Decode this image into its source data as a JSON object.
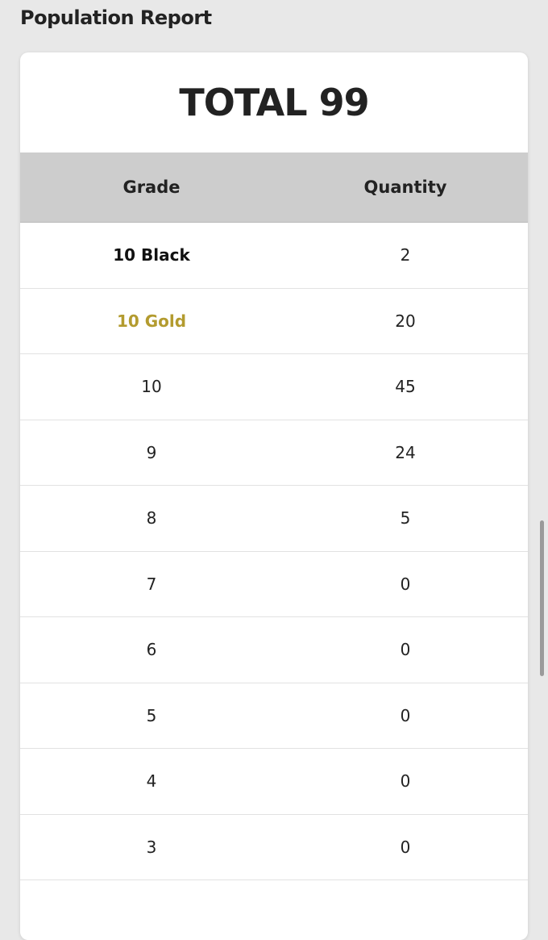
{
  "page": {
    "title": "Population Report"
  },
  "summary": {
    "total_label": "TOTAL 99"
  },
  "table": {
    "headers": {
      "grade": "Grade",
      "quantity": "Quantity"
    },
    "rows": [
      {
        "grade": "10 Black",
        "quantity": "2",
        "style": "bold",
        "color": "#111111"
      },
      {
        "grade": "10 Gold",
        "quantity": "20",
        "style": "bold",
        "color": "#b39b2f"
      },
      {
        "grade": "10",
        "quantity": "45"
      },
      {
        "grade": "9",
        "quantity": "24"
      },
      {
        "grade": "8",
        "quantity": "5"
      },
      {
        "grade": "7",
        "quantity": "0"
      },
      {
        "grade": "6",
        "quantity": "0"
      },
      {
        "grade": "5",
        "quantity": "0"
      },
      {
        "grade": "4",
        "quantity": "0"
      },
      {
        "grade": "3",
        "quantity": "0"
      }
    ]
  },
  "colors": {
    "background": "#e8e8e8",
    "header_bg": "#cdcdcd",
    "gold": "#b39b2f"
  }
}
